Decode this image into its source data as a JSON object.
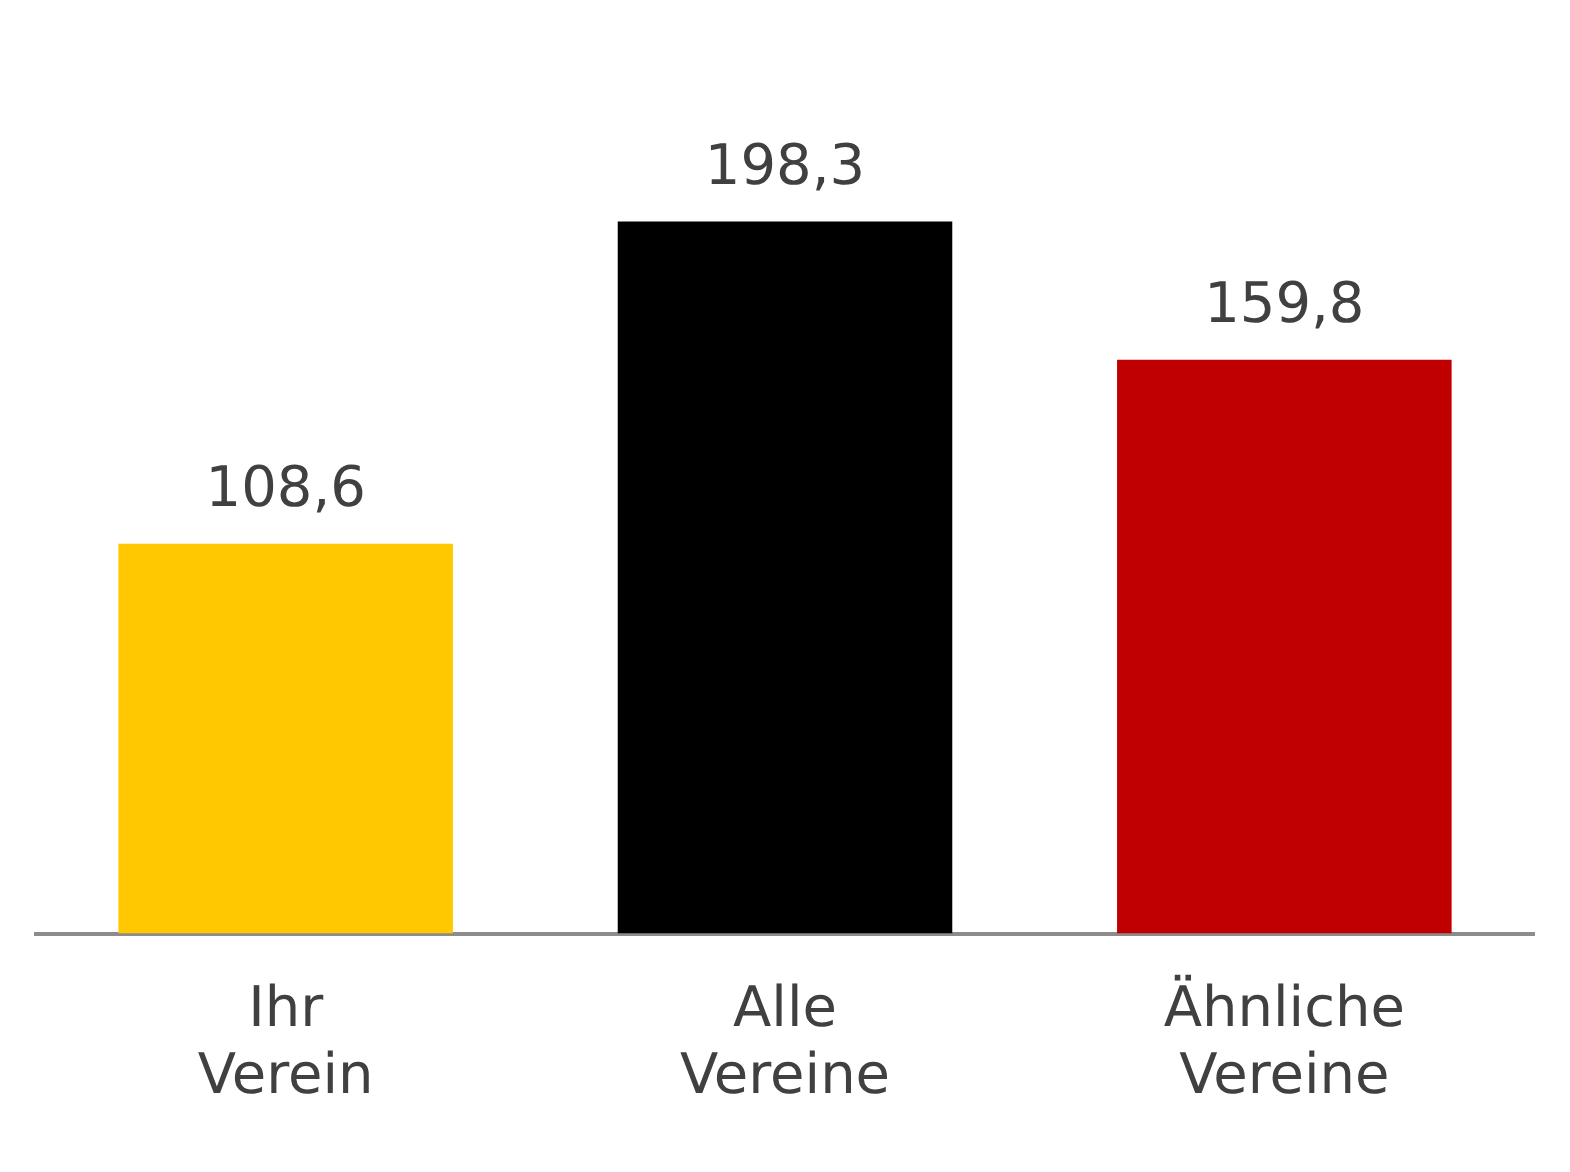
{
  "chart_data": {
    "type": "bar",
    "categories": [
      "Ihr Verein",
      "Alle Vereine",
      "Ähnliche Vereine"
    ],
    "values": [
      108.6,
      198.3,
      159.8
    ],
    "colors": [
      "#ffc800",
      "#000000",
      "#c00000"
    ],
    "value_labels": [
      "108,6",
      "198,3",
      "159,8"
    ],
    "grid": false,
    "legend": false
  }
}
